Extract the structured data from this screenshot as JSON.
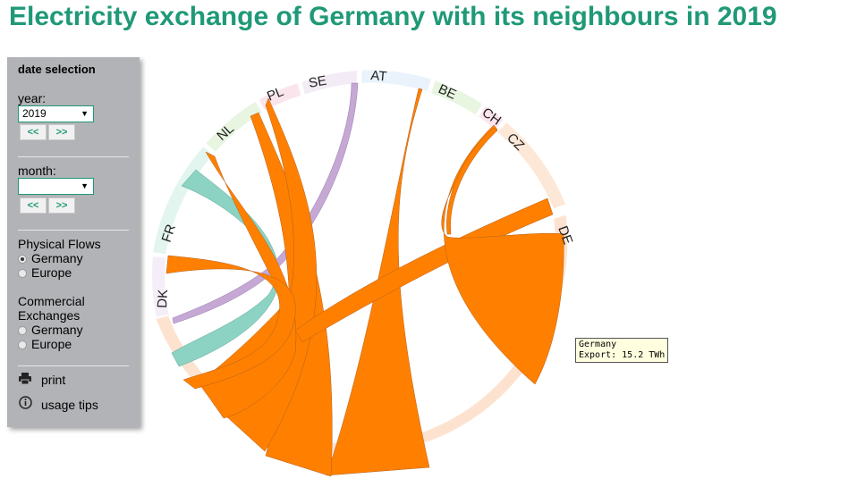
{
  "title": "Electricity exchange of Germany with its neighbours in 2019",
  "panel": {
    "heading": "date selection",
    "year_label": "year:",
    "year_value": "2019",
    "month_label": "month:",
    "month_value": "",
    "prev_label": "<<",
    "next_label": ">>",
    "physical_flows_label": "Physical Flows",
    "commercial_label_1": "Commercial",
    "commercial_label_2": "Exchanges",
    "option_germany": "Germany",
    "option_europe": "Europe",
    "physical_selected": "Germany",
    "print_label": "print",
    "usage_label": "usage tips"
  },
  "countries": {
    "DK": "DK",
    "FR": "FR",
    "NL": "NL",
    "PL": "PL",
    "SE": "SE",
    "AT": "AT",
    "BE": "BE",
    "CH": "CH",
    "CZ": "CZ",
    "DE": "DE"
  },
  "tooltip": {
    "line1": "Germany",
    "line2": "Export: 15.2 TWh"
  },
  "colors": {
    "title": "#1f9977",
    "export_flow": "#ff8000",
    "fr_flow": "#8cd3c3",
    "se_flow": "#c5a8d4"
  }
}
